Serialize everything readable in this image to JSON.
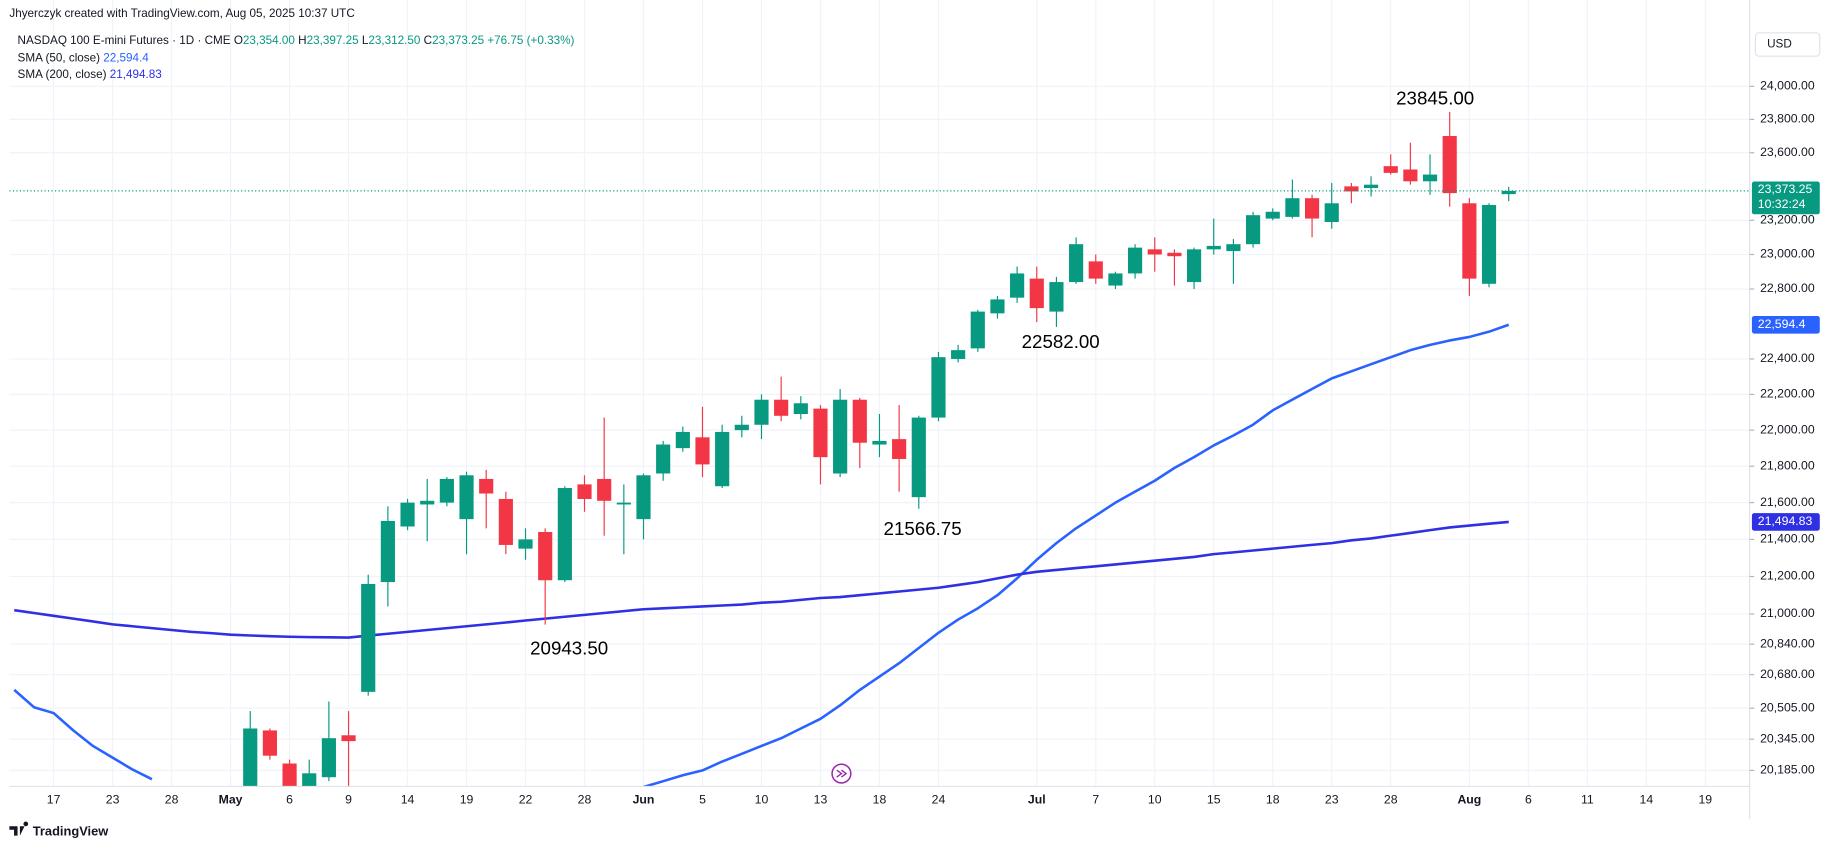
{
  "header": {
    "attribution": "Jhyerczyk created with TradingView.com, Aug 05, 2025 10:37 UTC",
    "currency": "USD",
    "footer": "TradingView"
  },
  "chart_data": {
    "type": "candlestick",
    "legend": {
      "symbol": "NASDAQ 100 E-mini Futures · 1D · CME",
      "o": "O",
      "o_value": "23,354.00",
      "h": "H",
      "h_value": "23,397.25",
      "l": "L",
      "l_value": "23,312.50",
      "c": "C",
      "c_value": "23,373.25",
      "change": "+76.75 (+0.33%)"
    },
    "price_label": "23,373.25",
    "countdown": "10:32:24",
    "up_color": "#089981",
    "down_color": "#f23645",
    "log": true,
    "grid": true,
    "ylim": [
      20103,
      24530
    ],
    "yticks": [
      {
        "value": 24000,
        "label": "24,000.00"
      },
      {
        "value": 23800,
        "label": "23,800.00"
      },
      {
        "value": 23600,
        "label": "23,600.00"
      },
      {
        "value": 23200,
        "label": "23,200.00"
      },
      {
        "value": 23000,
        "label": "23,000.00"
      },
      {
        "value": 22800,
        "label": "22,800.00"
      },
      {
        "value": 22400,
        "label": "22,400.00"
      },
      {
        "value": 22200,
        "label": "22,200.00"
      },
      {
        "value": 22000,
        "label": "22,000.00"
      },
      {
        "value": 21800,
        "label": "21,800.00"
      },
      {
        "value": 21600,
        "label": "21,600.00"
      },
      {
        "value": 21400,
        "label": "21,400.00"
      },
      {
        "value": 21200,
        "label": "21,200.00"
      },
      {
        "value": 21000,
        "label": "21,000.00"
      },
      {
        "value": 20840,
        "label": "20,840.00"
      },
      {
        "value": 20680,
        "label": "20,680.00"
      },
      {
        "value": 20505,
        "label": "20,505.00"
      },
      {
        "value": 20345,
        "label": "20,345.00"
      },
      {
        "value": 20185,
        "label": "20,185.00"
      }
    ],
    "categories": [
      null,
      null,
      "17",
      null,
      null,
      "23",
      null,
      null,
      "28",
      null,
      null,
      "May",
      null,
      null,
      "6",
      null,
      null,
      "9",
      null,
      null,
      "14",
      null,
      null,
      "19",
      null,
      null,
      "22",
      null,
      null,
      "28",
      null,
      null,
      "Jun",
      null,
      null,
      "5",
      null,
      null,
      "10",
      null,
      null,
      "13",
      null,
      null,
      "18",
      null,
      null,
      "24",
      null,
      null,
      null,
      null,
      "Jul",
      null,
      null,
      "7",
      null,
      null,
      "10",
      null,
      null,
      "15",
      null,
      null,
      "18",
      null,
      null,
      "23",
      null,
      null,
      "28",
      null,
      null,
      null,
      "Aug",
      null,
      null,
      "6",
      null,
      null,
      "11",
      null,
      null,
      "14",
      null,
      null,
      "19",
      null,
      null
    ],
    "open": [
      null,
      null,
      null,
      null,
      null,
      null,
      null,
      null,
      null,
      null,
      null,
      null,
      20050,
      20390,
      20220,
      20100,
      20150,
      20365,
      20590,
      21170,
      21470,
      21590,
      21600,
      21510,
      21730,
      21620,
      21350,
      21440,
      21180,
      21700,
      21730,
      21590,
      21510,
      21760,
      21900,
      21960,
      21690,
      22000,
      22030,
      22170,
      22090,
      22120,
      21760,
      22170,
      21920,
      21950,
      21630,
      22070,
      22400,
      22460,
      22660,
      22750,
      22860,
      22670,
      22840,
      22960,
      22820,
      22890,
      23030,
      23010,
      22840,
      23030,
      23020,
      23060,
      23210,
      23220,
      23330,
      23190,
      23400,
      23390,
      23520,
      23500,
      23430,
      23700,
      23300,
      22830,
      23354,
      null,
      null,
      null,
      null,
      null,
      null,
      null,
      null,
      null,
      null,
      null,
      null
    ],
    "high": [
      null,
      null,
      null,
      null,
      null,
      null,
      null,
      null,
      null,
      null,
      null,
      null,
      20490,
      20400,
      20240,
      20240,
      20540,
      20490,
      21210,
      21580,
      21620,
      21730,
      21740,
      21770,
      21780,
      21660,
      21460,
      21460,
      21690,
      21750,
      22070,
      21700,
      21760,
      21940,
      22020,
      22130,
      22030,
      22080,
      22200,
      22300,
      22190,
      22140,
      22230,
      22180,
      22090,
      22140,
      22080,
      22440,
      22480,
      22680,
      22760,
      22930,
      22930,
      22870,
      23100,
      23000,
      22900,
      23060,
      23100,
      23030,
      23040,
      23210,
      23090,
      23250,
      23270,
      23440,
      23350,
      23420,
      23420,
      23460,
      23590,
      23660,
      23590,
      23845,
      23330,
      23300,
      23397.25,
      null,
      null,
      null,
      null,
      null,
      null,
      null,
      null,
      null,
      null,
      null,
      null
    ],
    "low": [
      null,
      null,
      null,
      null,
      null,
      null,
      null,
      null,
      null,
      null,
      null,
      null,
      20000,
      20240,
      20000,
      20020,
      20130,
      20100,
      20570,
      21040,
      21450,
      21390,
      21580,
      21320,
      21460,
      21320,
      21290,
      20943.5,
      21170,
      21550,
      21420,
      21320,
      21400,
      21720,
      21880,
      21740,
      21680,
      21960,
      21950,
      22050,
      22060,
      21700,
      21740,
      21790,
      21850,
      21660,
      21566.75,
      22050,
      22380,
      22440,
      22630,
      22720,
      22610,
      22582,
      22830,
      22830,
      22800,
      22860,
      22900,
      22820,
      22800,
      23000,
      22830,
      23040,
      23200,
      23210,
      23100,
      23150,
      23300,
      23340,
      23470,
      23410,
      23350,
      23280,
      22760,
      22810,
      23312.5,
      null,
      null,
      null,
      null,
      null,
      null,
      null,
      null,
      null,
      null,
      null,
      null
    ],
    "close": [
      null,
      null,
      null,
      null,
      null,
      null,
      null,
      null,
      null,
      null,
      null,
      null,
      20400,
      20260,
      20080,
      20170,
      20350,
      20335,
      21160,
      21500,
      21600,
      21610,
      21730,
      21750,
      21650,
      21370,
      21400,
      21180,
      21680,
      21620,
      21610,
      21600,
      21750,
      21920,
      21990,
      21810,
      21990,
      22030,
      22170,
      22080,
      22150,
      21850,
      22170,
      21930,
      21940,
      21840,
      22070,
      22410,
      22450,
      22670,
      22740,
      22890,
      22690,
      22840,
      23060,
      22860,
      22890,
      23040,
      23000,
      22990,
      23030,
      23050,
      23060,
      23230,
      23250,
      23330,
      23210,
      23300,
      23370,
      23410,
      23480,
      23430,
      23470,
      23360,
      22860,
      23290,
      23373.25,
      null,
      null,
      null,
      null,
      null,
      null,
      null,
      null,
      null,
      null,
      null,
      null
    ],
    "series": [
      {
        "name": "SMA (50, close)",
        "last_label": "22,594.4",
        "color": "#2962ff",
        "values": [
          20600,
          20510,
          20480,
          20390,
          20310,
          20250,
          20190,
          20140,
          null,
          null,
          null,
          null,
          null,
          null,
          null,
          null,
          null,
          null,
          null,
          null,
          null,
          null,
          null,
          null,
          null,
          null,
          null,
          null,
          null,
          null,
          null,
          null,
          20100,
          20130,
          20160,
          20185,
          20230,
          20270,
          20310,
          20350,
          20400,
          20450,
          20520,
          20600,
          20670,
          20740,
          20820,
          20900,
          20970,
          21030,
          21100,
          21190,
          21290,
          21380,
          21460,
          21530,
          21600,
          21660,
          21720,
          21790,
          21850,
          21915,
          21970,
          22030,
          22110,
          22170,
          22230,
          22290,
          22330,
          22370,
          22410,
          22450,
          22480,
          22505,
          22525,
          22555,
          22594.4,
          null,
          null,
          null,
          null,
          null,
          null,
          null,
          null,
          null,
          null,
          null,
          null
        ]
      },
      {
        "name": "SMA (200, close)",
        "last_label": "21,494.83",
        "color": "#2f2fe4",
        "values": [
          21020,
          21005,
          20990,
          20975,
          20960,
          20945,
          20935,
          20925,
          20915,
          20905,
          20898,
          20890,
          20886,
          20882,
          20879,
          20877,
          20876,
          20875,
          20885,
          20895,
          20905,
          20915,
          20925,
          20935,
          20945,
          20955,
          20965,
          20975,
          20985,
          20995,
          21005,
          21015,
          21025,
          21030,
          21035,
          21040,
          21045,
          21050,
          21060,
          21065,
          21075,
          21085,
          21090,
          21100,
          21110,
          21120,
          21130,
          21140,
          21155,
          21170,
          21190,
          21210,
          21225,
          21235,
          21245,
          21255,
          21265,
          21275,
          21285,
          21295,
          21305,
          21320,
          21330,
          21340,
          21350,
          21360,
          21370,
          21380,
          21395,
          21405,
          21420,
          21435,
          21450,
          21465,
          21475,
          21485,
          21494.83,
          null,
          null,
          null,
          null,
          null,
          null,
          null,
          null,
          null,
          null,
          null,
          null
        ]
      }
    ],
    "annotations": [
      "23845.00",
      "22582.00",
      "21566.75",
      "20943.50"
    ]
  }
}
